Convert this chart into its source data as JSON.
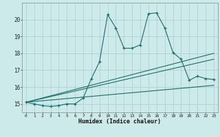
{
  "xlabel": "Humidex (Indice chaleur)",
  "bg_color": "#cdeaea",
  "grid_color": "#aacccc",
  "line_color": "#1a6b6b",
  "xlim": [
    -0.5,
    23.5
  ],
  "ylim": [
    14.5,
    21.0
  ],
  "yticks": [
    15,
    16,
    17,
    18,
    19,
    20
  ],
  "xticks": [
    0,
    1,
    2,
    3,
    4,
    5,
    6,
    7,
    8,
    9,
    10,
    11,
    12,
    13,
    14,
    15,
    16,
    17,
    18,
    19,
    20,
    21,
    22,
    23
  ],
  "line1_x": [
    0,
    1,
    2,
    3,
    4,
    5,
    6,
    7,
    8,
    9,
    10,
    11,
    12,
    13,
    14,
    15,
    16,
    17,
    18,
    19,
    20,
    21,
    22,
    23
  ],
  "line1_y": [
    15.1,
    15.0,
    14.9,
    14.85,
    14.9,
    15.0,
    15.0,
    15.35,
    16.5,
    17.5,
    20.3,
    19.5,
    18.3,
    18.3,
    18.5,
    20.35,
    20.4,
    19.5,
    18.05,
    17.65,
    16.4,
    16.65,
    16.5,
    16.45
  ],
  "line2_x": [
    0,
    23
  ],
  "line2_y": [
    15.1,
    18.0
  ],
  "line3_x": [
    0,
    23
  ],
  "line3_y": [
    15.1,
    16.1
  ],
  "line4_x": [
    0,
    23
  ],
  "line4_y": [
    15.1,
    17.65
  ]
}
